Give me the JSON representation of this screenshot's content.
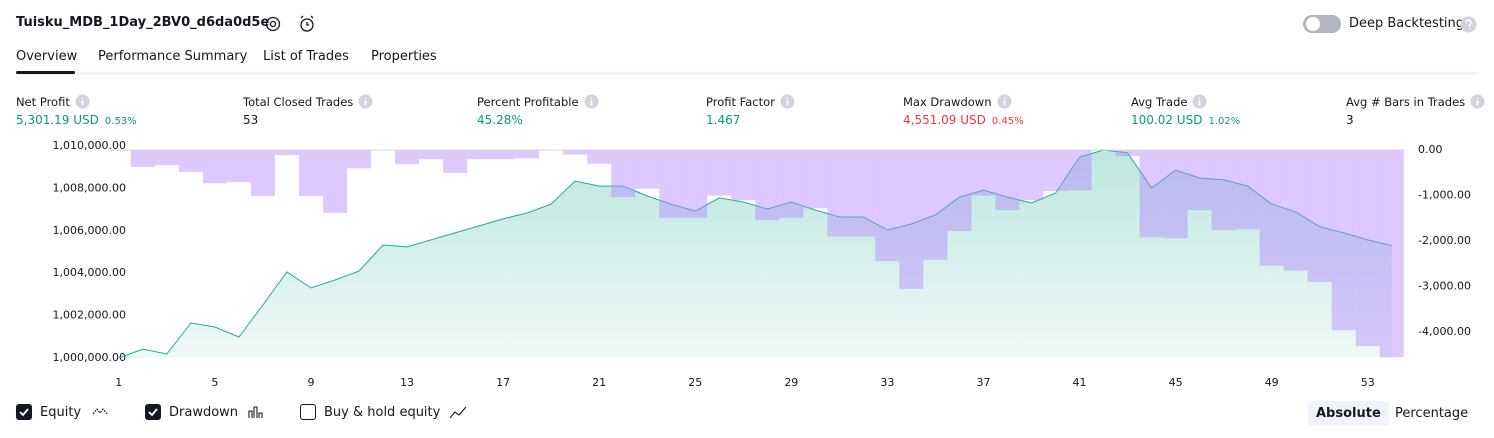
{
  "header": {
    "title": "Tuisku_MDB_1Day_2BV0_d6da0d5e",
    "deep_backtesting": "Deep Backtesting"
  },
  "tabs": [
    "Overview",
    "Performance Summary",
    "List of Trades",
    "Properties"
  ],
  "metrics": [
    {
      "label": "Net Profit",
      "value": "5,301.19 USD",
      "change": "0.53%",
      "color": "#089981"
    },
    {
      "label": "Total Closed Trades",
      "value": "53"
    },
    {
      "label": "Percent Profitable",
      "value": "45.28%",
      "color": "#089981"
    },
    {
      "label": "Profit Factor",
      "value": "1.467",
      "color": "#089981"
    },
    {
      "label": "Max Drawdown",
      "value": "4,551.09 USD",
      "change": "0.45%",
      "color": "#f23645"
    },
    {
      "label": "Avg Trade",
      "value": "100.02 USD",
      "change": "1.02%",
      "color": "#089981"
    },
    {
      "label": "Avg # Bars in Trades",
      "value": "3"
    }
  ],
  "chart_data": {
    "type": "combo",
    "x": [
      1,
      2,
      3,
      4,
      5,
      6,
      7,
      8,
      9,
      10,
      11,
      12,
      13,
      14,
      15,
      16,
      17,
      18,
      19,
      20,
      21,
      22,
      23,
      24,
      25,
      26,
      27,
      28,
      29,
      30,
      31,
      32,
      33,
      34,
      35,
      36,
      37,
      38,
      39,
      40,
      41,
      42,
      43,
      44,
      45,
      46,
      47,
      48,
      49,
      50,
      51,
      52,
      53,
      54
    ],
    "xlim": [
      0.55,
      54.55
    ],
    "xticks": [
      1,
      5,
      9,
      13,
      17,
      21,
      25,
      29,
      33,
      37,
      41,
      45,
      49,
      53
    ],
    "ylim": [
      1000000,
      1010000
    ],
    "yticks": [
      {
        "value": 1000000,
        "label": "1,000,000.00"
      },
      {
        "value": 1002000,
        "label": "1,002,000.00"
      },
      {
        "value": 1004000,
        "label": "1,004,000.00"
      },
      {
        "value": 1006000,
        "label": "1,006,000.00"
      },
      {
        "value": 1008000,
        "label": "1,008,000.00"
      },
      {
        "value": 1010000,
        "label": "1,010,000.00"
      }
    ],
    "y2lim": [
      -4570,
      90
    ],
    "y2ticks": [
      {
        "value": 0,
        "label": "0.00"
      },
      {
        "value": -1000,
        "label": "-1,000.00"
      },
      {
        "value": -2000,
        "label": "-2,000.00"
      },
      {
        "value": -3000,
        "label": "-3,000.00"
      },
      {
        "value": -4000,
        "label": "-4,000.00"
      }
    ],
    "series": [
      {
        "name": "Equity",
        "type": "area",
        "color": "#22ab94",
        "axis": "y",
        "checked": true,
        "values": [
          1000000,
          1000420,
          1000190,
          1001650,
          1001460,
          1000990,
          1002500,
          1004060,
          1003300,
          1003680,
          1004100,
          1005330,
          1005240,
          1005570,
          1005900,
          1006230,
          1006560,
          1006840,
          1007260,
          1008350,
          1008110,
          1008110,
          1007640,
          1007260,
          1006930,
          1007550,
          1007360,
          1007030,
          1007360,
          1006980,
          1006650,
          1006650,
          1006040,
          1006320,
          1006750,
          1007590,
          1007920,
          1007590,
          1007310,
          1007780,
          1009480,
          1009810,
          1009680,
          1008020,
          1008870,
          1008490,
          1008400,
          1008110,
          1007260,
          1006890,
          1006200,
          1005900,
          1005570,
          1005301
        ]
      },
      {
        "name": "Drawdown",
        "type": "bar",
        "color": "#b388ff",
        "axis": "y2",
        "checked": true,
        "values": [
          0,
          -370,
          -330,
          -480,
          -730,
          -700,
          -1010,
          -110,
          -1010,
          -1380,
          -400,
          0,
          -310,
          -200,
          -500,
          -200,
          -200,
          -180,
          0,
          -100,
          -300,
          -1030,
          -850,
          -1490,
          -1490,
          -1000,
          -1100,
          -1540,
          -1490,
          -1280,
          -1900,
          -1900,
          -2440,
          -3050,
          -2410,
          -1780,
          -1000,
          -1320,
          -1100,
          -900,
          -880,
          0,
          -130,
          -1920,
          -1940,
          -1320,
          -1760,
          -1740,
          -2540,
          -2650,
          -2900,
          -3960,
          -4310,
          -4551
        ]
      }
    ]
  },
  "extra_toggle": {
    "label": "Buy & hold equity",
    "checked": false
  },
  "modes": [
    {
      "label": "Absolute",
      "active": true
    },
    {
      "label": "Percentage",
      "active": false
    }
  ]
}
